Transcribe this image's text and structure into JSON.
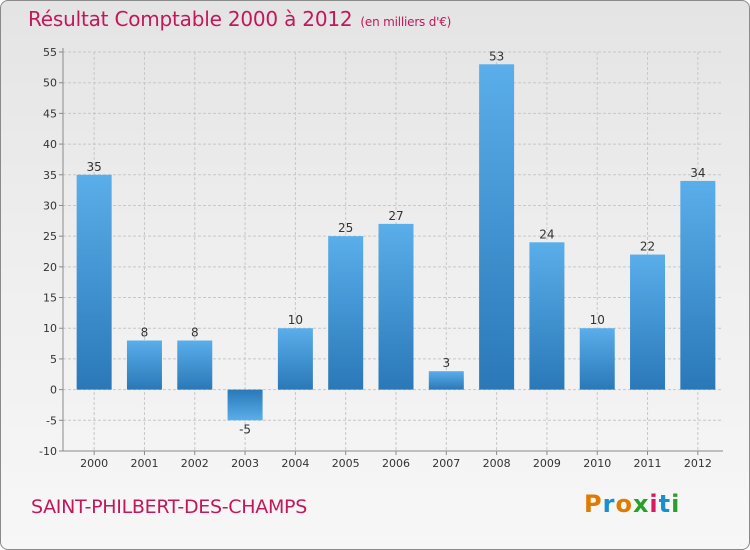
{
  "header": {
    "title": "Résultat Comptable 2000 à 2012",
    "subtitle": "(en milliers d'€)"
  },
  "footer": {
    "commune": "SAINT-PHILBERT-DES-CHAMPS",
    "logo_text": "Proxiti",
    "logo_colors": [
      "#e07b00",
      "#1a8fd0",
      "#e07b00",
      "#2aa02a",
      "#d81b60",
      "#1a8fd0",
      "#2aa02a"
    ]
  },
  "colors": {
    "title": "#c2185b",
    "bar_light": "#5aaeea",
    "bar_dark": "#2a78b8",
    "grid": "#c8c8c8"
  },
  "chart_data": {
    "type": "bar",
    "categories": [
      "2000",
      "2001",
      "2002",
      "2003",
      "2004",
      "2005",
      "2006",
      "2007",
      "2008",
      "2009",
      "2010",
      "2011",
      "2012"
    ],
    "values": [
      35,
      8,
      8,
      -5,
      10,
      25,
      27,
      3,
      53,
      24,
      10,
      22,
      34
    ],
    "ylim": [
      -10,
      55
    ],
    "yticks": [
      -10,
      -5,
      0,
      5,
      10,
      15,
      20,
      25,
      30,
      35,
      40,
      45,
      50,
      55
    ],
    "grid": true,
    "title": "Résultat Comptable 2000 à 2012",
    "xlabel": "",
    "ylabel": ""
  }
}
